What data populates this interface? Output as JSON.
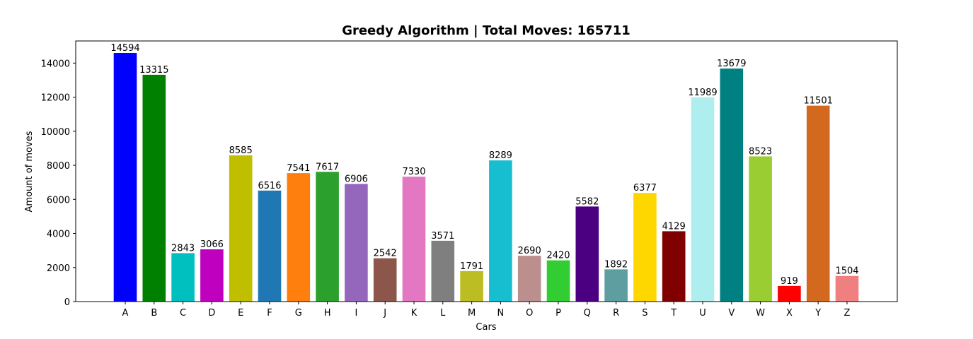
{
  "chart_data": {
    "type": "bar",
    "title": "Greedy Algorithm | Total Moves: 165711",
    "xlabel": "Cars",
    "ylabel": "Amount of moves",
    "ylim": [
      0,
      15300
    ],
    "yticks": [
      0,
      2000,
      4000,
      6000,
      8000,
      10000,
      12000,
      14000
    ],
    "grid": false,
    "categories": [
      "A",
      "B",
      "C",
      "D",
      "E",
      "F",
      "G",
      "H",
      "I",
      "J",
      "K",
      "L",
      "M",
      "N",
      "O",
      "P",
      "Q",
      "R",
      "S",
      "T",
      "U",
      "V",
      "W",
      "X",
      "Y",
      "Z"
    ],
    "values": [
      14594,
      13315,
      2843,
      3066,
      8585,
      6516,
      7541,
      7617,
      6906,
      2542,
      7330,
      3571,
      1791,
      8289,
      2690,
      2420,
      5582,
      1892,
      6377,
      4129,
      11989,
      13679,
      8523,
      919,
      11501,
      1504
    ],
    "colors": [
      "#0000ff",
      "#008000",
      "#00bfbf",
      "#bf00bf",
      "#bfbf00",
      "#1f77b4",
      "#ff7f0e",
      "#2ca02c",
      "#9467bd",
      "#8c564b",
      "#e377c2",
      "#7f7f7f",
      "#bcbd22",
      "#17becf",
      "#bc8f8f",
      "#32cd32",
      "#4b0082",
      "#5f9ea0",
      "#ffd700",
      "#800000",
      "#afeeee",
      "#008080",
      "#9acd32",
      "#ff0000",
      "#d2691e",
      "#f08080"
    ]
  }
}
